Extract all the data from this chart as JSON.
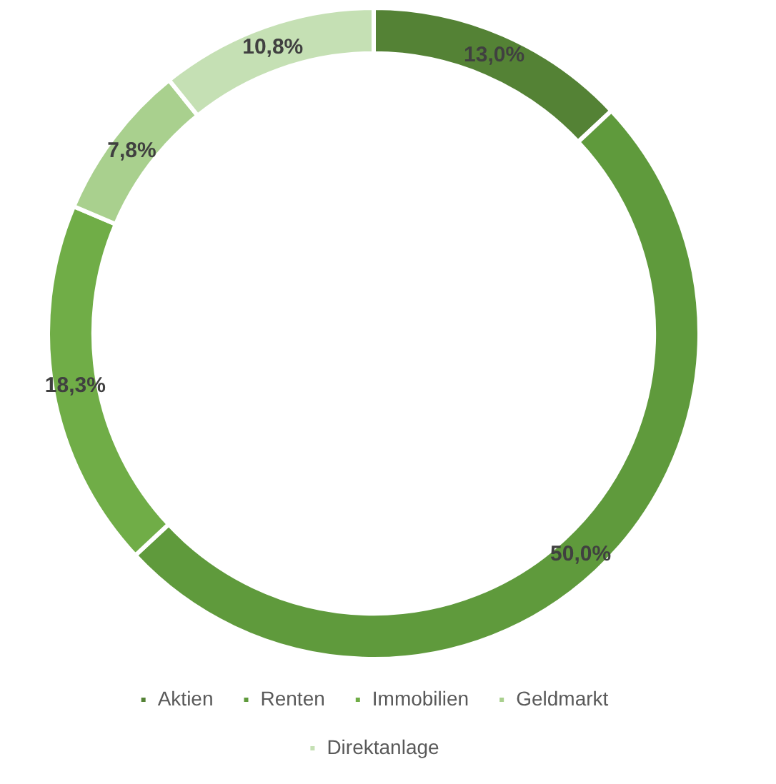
{
  "chart_data": {
    "type": "donut",
    "categories": [
      "Aktien",
      "Renten",
      "Immobilien",
      "Geldmarkt",
      "Direktanlage"
    ],
    "values": [
      13.0,
      50.0,
      18.3,
      7.8,
      10.8
    ],
    "colors": [
      "#548235",
      "#5f9a3c",
      "#70ad47",
      "#a9d08e",
      "#c5e0b4"
    ],
    "value_labels": [
      "13,0%",
      "50,0%",
      "18,3%",
      "7,8%",
      "10,8%"
    ],
    "legend": "bottom"
  }
}
